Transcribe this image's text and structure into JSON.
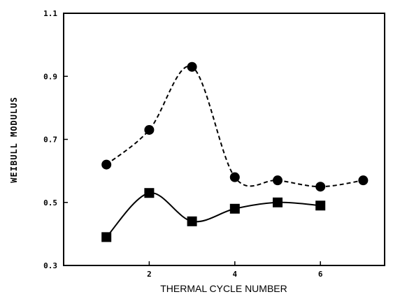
{
  "chart_data": {
    "type": "line",
    "title": "",
    "xlabel": "THERMAL CYCLE NUMBER",
    "ylabel": "WEIBULL MODULUS",
    "xlim": [
      0,
      7.5
    ],
    "ylim": [
      0.3,
      1.1
    ],
    "xticks": [
      2,
      4,
      6
    ],
    "xtick_labels": [
      "2",
      "4",
      "6"
    ],
    "yticks": [
      0.3,
      0.5,
      0.7,
      0.9,
      1.1
    ],
    "ytick_labels": [
      "0.3",
      "0.5",
      "0.7",
      "0.9",
      "1.1"
    ],
    "grid": false,
    "legend": "none",
    "series": [
      {
        "marker": "circle",
        "line_style": "dashed",
        "color": "#000000",
        "x": [
          1,
          2,
          3,
          4,
          5,
          6,
          7
        ],
        "y": [
          0.62,
          0.73,
          0.93,
          0.58,
          0.57,
          0.55,
          0.57
        ]
      },
      {
        "marker": "square",
        "line_style": "solid",
        "color": "#000000",
        "x": [
          1,
          2,
          3,
          4,
          5,
          6
        ],
        "y": [
          0.39,
          0.53,
          0.44,
          0.48,
          0.5,
          0.49
        ]
      }
    ]
  }
}
